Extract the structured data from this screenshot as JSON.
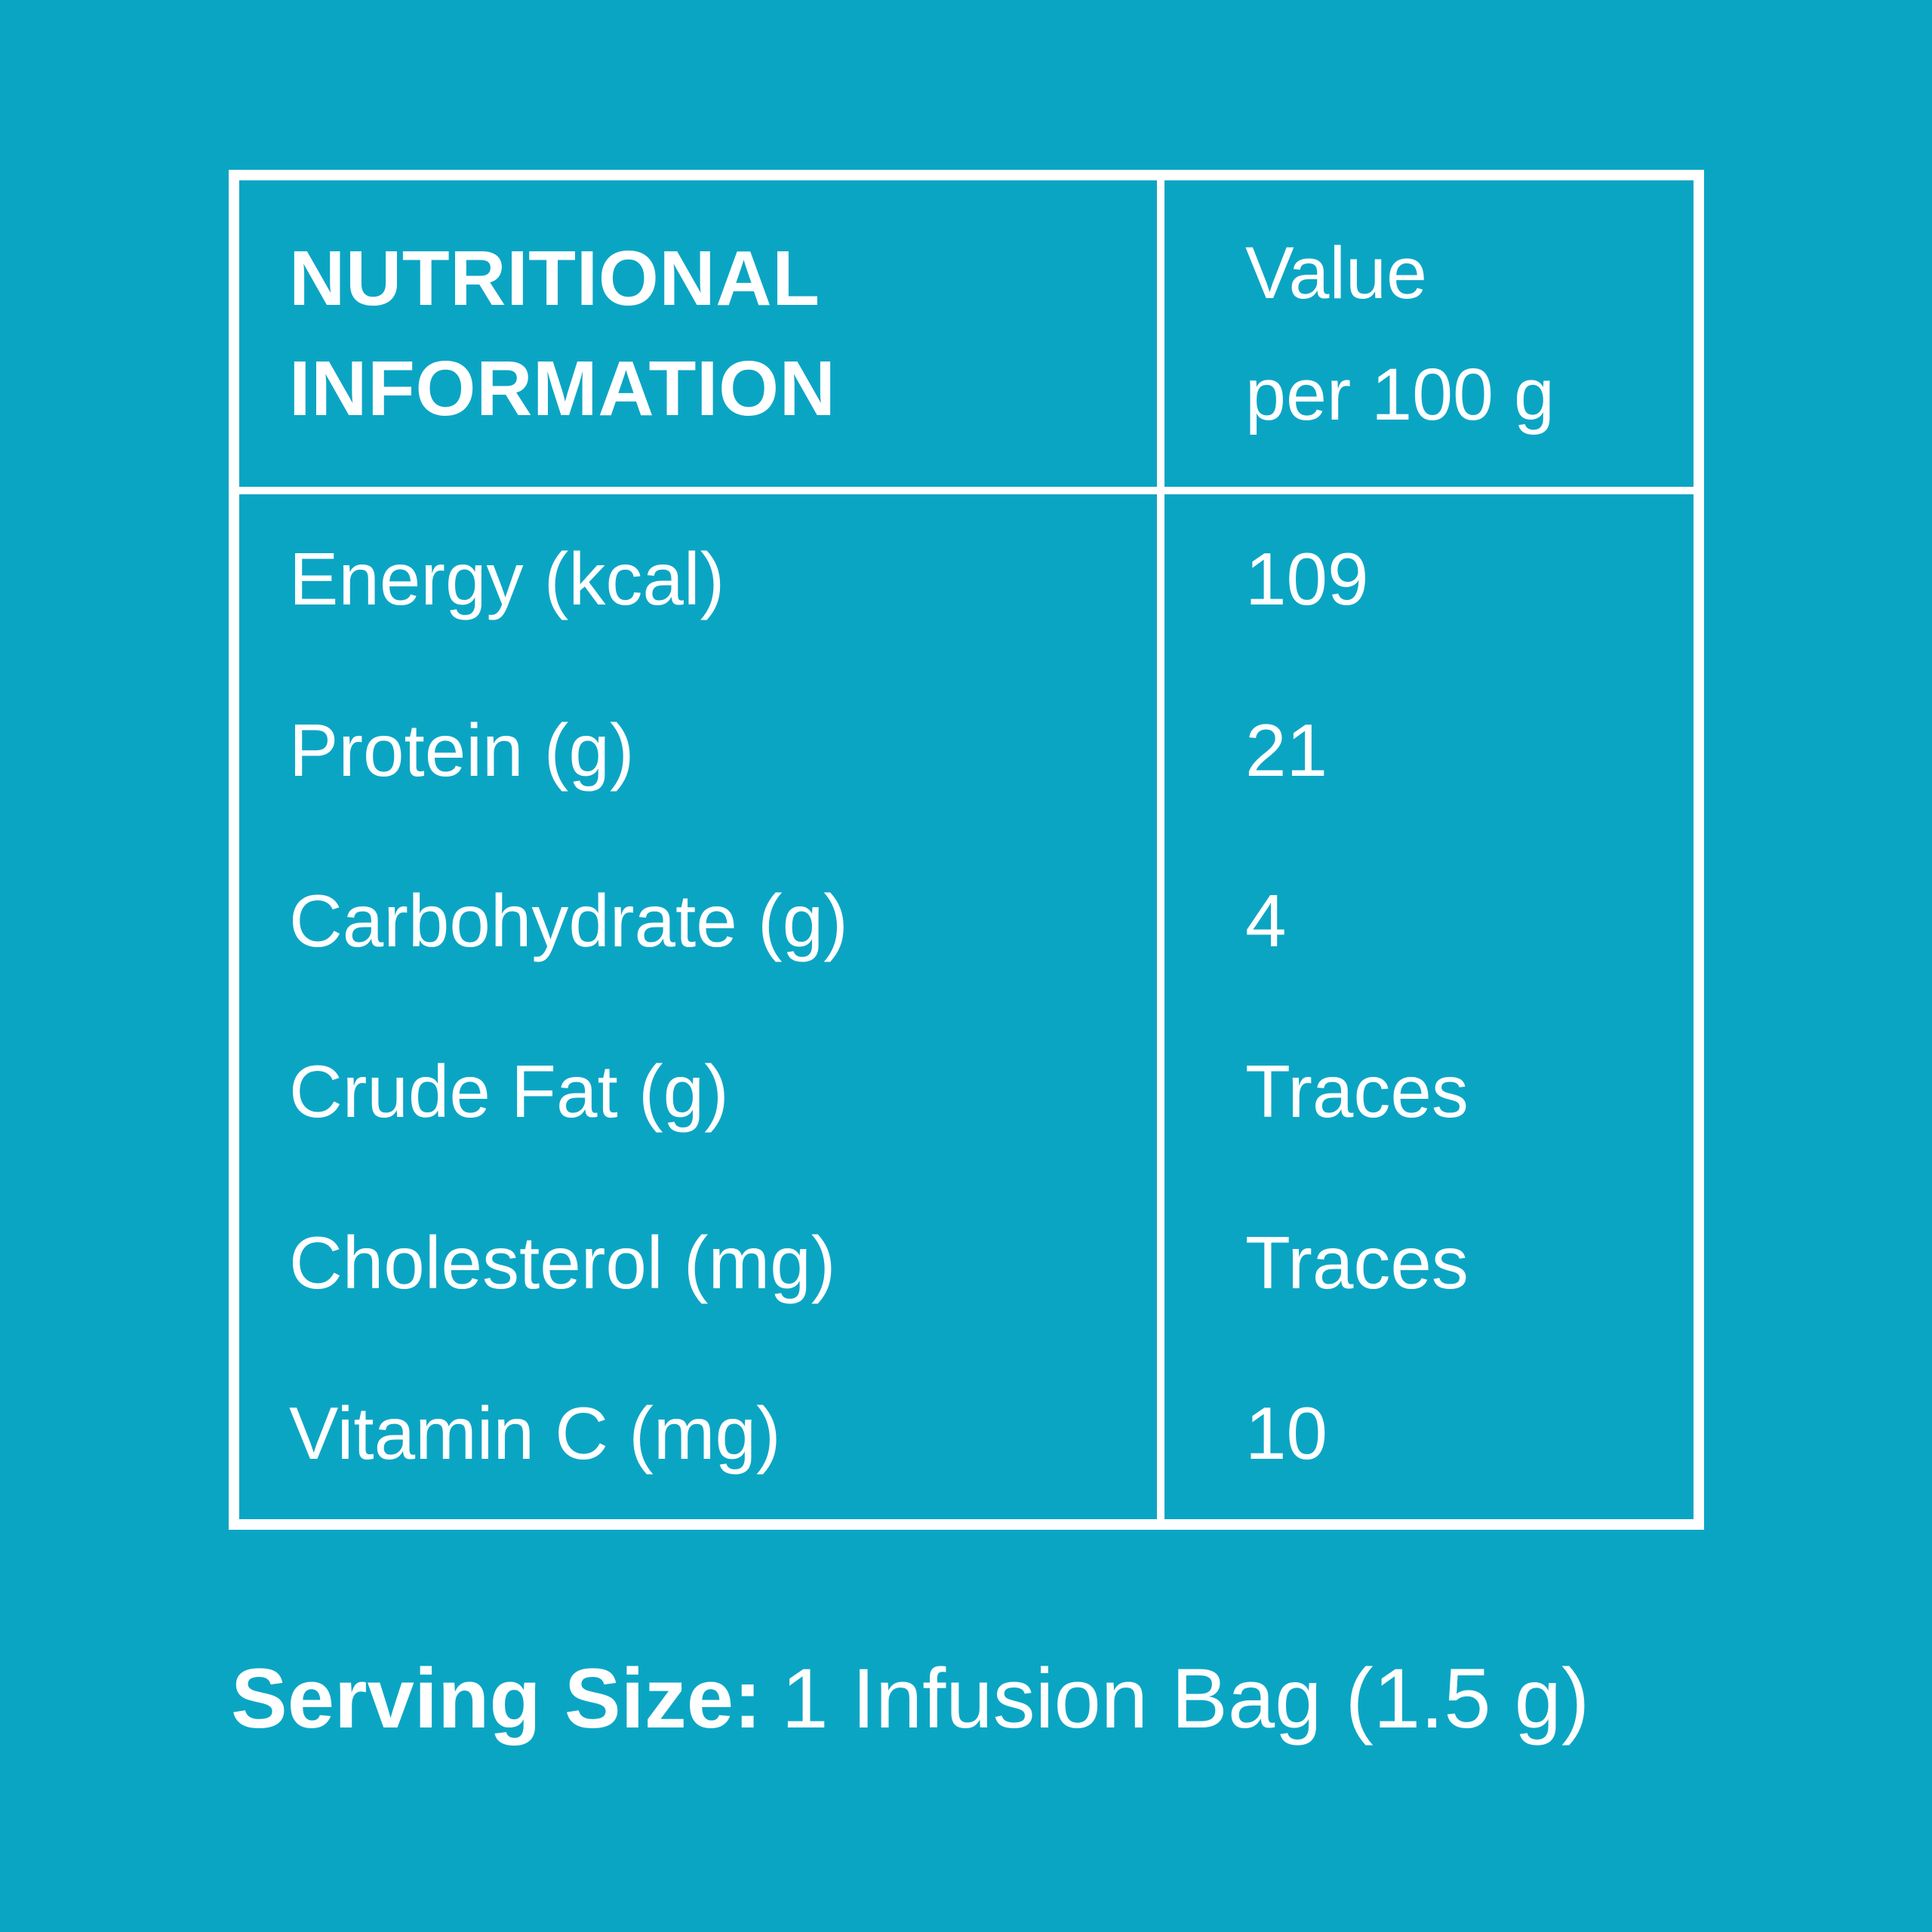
{
  "colors": {
    "background": "#0ba5c4",
    "foreground": "#ffffff"
  },
  "table": {
    "header": {
      "title_line1": "NUTRITIONAL",
      "title_line2": "INFORMATION",
      "value_line1": "Value",
      "value_line2": "per 100 g"
    },
    "rows": [
      {
        "label": "Energy (kcal)",
        "value": "109"
      },
      {
        "label": "Protein (g)",
        "value": "21"
      },
      {
        "label": "Carbohydrate (g)",
        "value": "4"
      },
      {
        "label": "Crude Fat (g)",
        "value": "Traces"
      },
      {
        "label": "Cholesterol (mg)",
        "value": "Traces"
      },
      {
        "label": "Vitamin C (mg)",
        "value": "10"
      }
    ]
  },
  "footer": {
    "serving_size_label": "Serving Size:",
    "serving_size_value": "1 Infusion Bag (1.5 g)"
  }
}
